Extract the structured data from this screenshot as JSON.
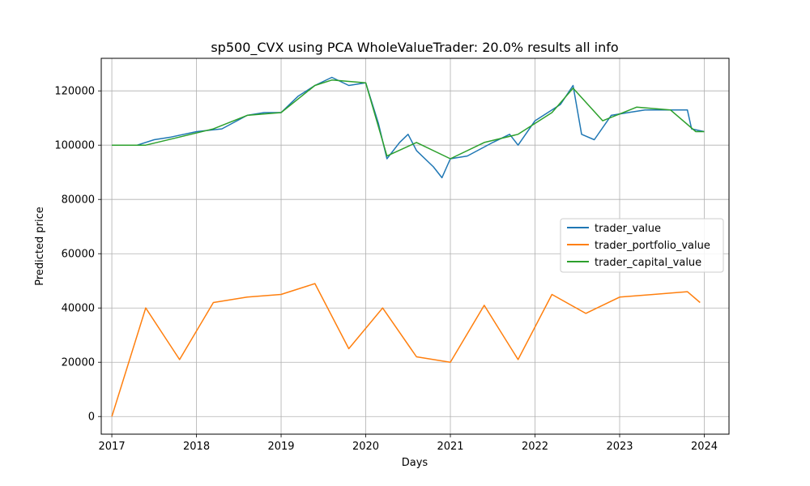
{
  "chart_data": {
    "type": "line",
    "title": "sp500_CVX using PCA WholeValueTrader: 20.0% results all info",
    "xlabel": "Days",
    "ylabel": "Predicted price",
    "xlim": [
      2016.875,
      2024.292
    ],
    "ylim": [
      -6500,
      132000
    ],
    "x_ticks": [
      2017,
      2018,
      2019,
      2020,
      2021,
      2022,
      2023,
      2024
    ],
    "x_tick_labels": [
      "2017",
      "2018",
      "2019",
      "2020",
      "2021",
      "2022",
      "2023",
      "2024"
    ],
    "y_ticks": [
      0,
      20000,
      40000,
      60000,
      80000,
      100000,
      120000
    ],
    "y_tick_labels": [
      "0",
      "20000",
      "40000",
      "60000",
      "80000",
      "100000",
      "120000"
    ],
    "grid": true,
    "legend_position": "center-right",
    "colors": {
      "trader_value": "#1f77b4",
      "trader_portfolio_value": "#ff7f0e",
      "trader_capital_value": "#2ca02c"
    },
    "series": [
      {
        "name": "trader_value",
        "x": [
          2017.0,
          2017.3,
          2017.5,
          2017.7,
          2018.0,
          2018.3,
          2018.6,
          2018.8,
          2019.0,
          2019.2,
          2019.4,
          2019.6,
          2019.8,
          2020.0,
          2020.15,
          2020.25,
          2020.4,
          2020.5,
          2020.6,
          2020.8,
          2020.9,
          2021.0,
          2021.2,
          2021.5,
          2021.7,
          2021.8,
          2022.0,
          2022.3,
          2022.45,
          2022.55,
          2022.7,
          2022.9,
          2023.1,
          2023.3,
          2023.5,
          2023.8,
          2023.85,
          2024.0
        ],
        "y": [
          100000,
          100000,
          102000,
          103000,
          105000,
          106000,
          111000,
          112000,
          112000,
          118000,
          122000,
          125000,
          122000,
          123000,
          108000,
          95000,
          101000,
          104000,
          98000,
          92000,
          88000,
          95000,
          96000,
          101000,
          104000,
          100000,
          109000,
          115000,
          122000,
          104000,
          102000,
          111000,
          112000,
          113000,
          113000,
          113000,
          106000,
          105000
        ]
      },
      {
        "name": "trader_portfolio_value",
        "x": [
          2017.0,
          2017.4,
          2017.8,
          2018.2,
          2018.6,
          2019.0,
          2019.4,
          2019.8,
          2020.2,
          2020.6,
          2021.0,
          2021.4,
          2021.8,
          2022.2,
          2022.6,
          2023.0,
          2023.4,
          2023.8,
          2023.95
        ],
        "y": [
          0,
          40000,
          21000,
          42000,
          44000,
          45000,
          49000,
          25000,
          40000,
          22000,
          20000,
          41000,
          21000,
          45000,
          38000,
          44000,
          45000,
          46000,
          42000
        ]
      },
      {
        "name": "trader_capital_value",
        "x": [
          2017.0,
          2017.4,
          2017.8,
          2018.2,
          2018.6,
          2019.0,
          2019.4,
          2019.6,
          2020.0,
          2020.25,
          2020.6,
          2021.0,
          2021.4,
          2021.8,
          2022.2,
          2022.45,
          2022.8,
          2023.2,
          2023.6,
          2023.9,
          2024.0
        ],
        "y": [
          100000,
          100000,
          103000,
          106000,
          111000,
          112000,
          122000,
          124000,
          123000,
          96000,
          101000,
          95000,
          101000,
          104000,
          112000,
          121000,
          109000,
          114000,
          113000,
          105000,
          105000
        ]
      }
    ]
  }
}
